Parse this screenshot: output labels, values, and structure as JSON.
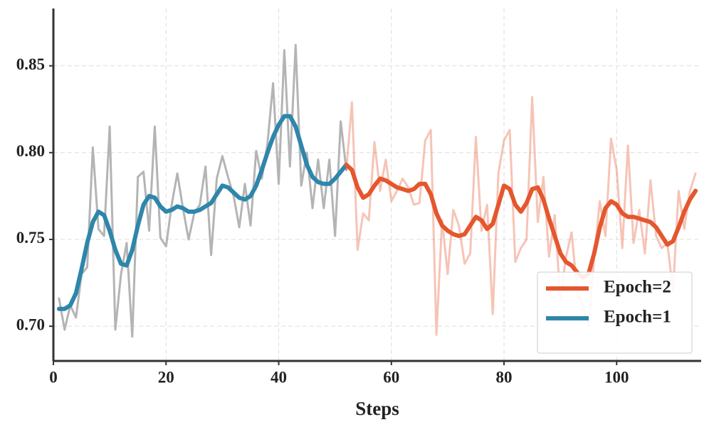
{
  "chart_data": {
    "type": "line",
    "xlabel": "Steps",
    "xlim": [
      0,
      115
    ],
    "ylim": [
      0.68,
      0.883
    ],
    "xticks": [
      0,
      20,
      40,
      60,
      80,
      100
    ],
    "yticks": [
      {
        "value": 0.7,
        "label": "0.70"
      },
      0.75,
      {
        "value": 0.8,
        "label": "0.80"
      },
      0.85
    ],
    "grid": true,
    "legend": "lower right",
    "series": [
      {
        "color": "#b4b4b6",
        "opacity": 1,
        "width": 3,
        "x": [
          1,
          2,
          3,
          4,
          5,
          6,
          7,
          8,
          9,
          10,
          11,
          12,
          13,
          14,
          15,
          16,
          17,
          18,
          19,
          20,
          21,
          22,
          23,
          24,
          25,
          26,
          27,
          28,
          29,
          30,
          31,
          32,
          33,
          34,
          35,
          36,
          37,
          38,
          39,
          40,
          41,
          42,
          43,
          44,
          45,
          46,
          47,
          48,
          49,
          50,
          51,
          52
        ],
        "values": [
          0.716,
          0.698,
          0.712,
          0.705,
          0.73,
          0.734,
          0.803,
          0.756,
          0.752,
          0.815,
          0.698,
          0.73,
          0.748,
          0.694,
          0.786,
          0.789,
          0.755,
          0.815,
          0.751,
          0.746,
          0.77,
          0.788,
          0.768,
          0.75,
          0.765,
          0.77,
          0.792,
          0.741,
          0.785,
          0.798,
          0.786,
          0.775,
          0.757,
          0.782,
          0.758,
          0.801,
          0.785,
          0.805,
          0.84,
          0.782,
          0.859,
          0.792,
          0.862,
          0.781,
          0.8,
          0.768,
          0.796,
          0.768,
          0.796,
          0.752,
          0.818,
          0.79
        ]
      },
      {
        "name": "Epoch=1",
        "color": "#2e86ab",
        "opacity": 1,
        "width": 6,
        "x": [
          1,
          2,
          3,
          4,
          5,
          6,
          7,
          8,
          9,
          10,
          11,
          12,
          13,
          14,
          15,
          16,
          17,
          18,
          19,
          20,
          21,
          22,
          23,
          24,
          25,
          26,
          27,
          28,
          29,
          30,
          31,
          32,
          33,
          34,
          35,
          36,
          37,
          38,
          39,
          40,
          41,
          42,
          43,
          44,
          45,
          46,
          47,
          48,
          49,
          50,
          51,
          52
        ],
        "values": [
          0.71,
          0.71,
          0.712,
          0.719,
          0.733,
          0.748,
          0.76,
          0.766,
          0.764,
          0.755,
          0.744,
          0.736,
          0.735,
          0.744,
          0.758,
          0.77,
          0.775,
          0.774,
          0.769,
          0.766,
          0.767,
          0.769,
          0.768,
          0.766,
          0.766,
          0.767,
          0.769,
          0.771,
          0.776,
          0.781,
          0.78,
          0.777,
          0.774,
          0.773,
          0.775,
          0.781,
          0.79,
          0.8,
          0.809,
          0.816,
          0.821,
          0.821,
          0.815,
          0.804,
          0.793,
          0.786,
          0.783,
          0.782,
          0.782,
          0.785,
          0.789,
          0.793
        ]
      },
      {
        "color": "#e4572e",
        "opacity": 0.35,
        "width": 3,
        "x": [
          52,
          53,
          54,
          55,
          56,
          57,
          58,
          59,
          60,
          61,
          62,
          63,
          64,
          65,
          66,
          67,
          68,
          69,
          70,
          71,
          72,
          73,
          74,
          75,
          76,
          77,
          78,
          79,
          80,
          81,
          82,
          83,
          84,
          85,
          86,
          87,
          88,
          89,
          90,
          91,
          92,
          93,
          94,
          95,
          96,
          97,
          98,
          99,
          100,
          101,
          102,
          103,
          104,
          105,
          106,
          107,
          108,
          109,
          110,
          111,
          112,
          113,
          114
        ],
        "values": [
          0.79,
          0.829,
          0.744,
          0.765,
          0.761,
          0.806,
          0.778,
          0.796,
          0.772,
          0.778,
          0.785,
          0.78,
          0.77,
          0.771,
          0.807,
          0.813,
          0.695,
          0.761,
          0.73,
          0.767,
          0.758,
          0.736,
          0.742,
          0.809,
          0.755,
          0.77,
          0.707,
          0.788,
          0.807,
          0.813,
          0.737,
          0.745,
          0.75,
          0.832,
          0.76,
          0.786,
          0.74,
          0.764,
          0.715,
          0.74,
          0.754,
          0.72,
          0.712,
          0.7,
          0.74,
          0.772,
          0.752,
          0.808,
          0.79,
          0.745,
          0.804,
          0.748,
          0.767,
          0.742,
          0.784,
          0.752,
          0.745,
          0.748,
          0.72,
          0.778,
          0.756,
          0.778,
          0.788
        ]
      },
      {
        "name": "Epoch=2",
        "color": "#e4572e",
        "opacity": 1,
        "width": 6,
        "x": [
          52,
          53,
          54,
          55,
          56,
          57,
          58,
          59,
          60,
          61,
          62,
          63,
          64,
          65,
          66,
          67,
          68,
          69,
          70,
          71,
          72,
          73,
          74,
          75,
          76,
          77,
          78,
          79,
          80,
          81,
          82,
          83,
          84,
          85,
          86,
          87,
          88,
          89,
          90,
          91,
          92,
          93,
          94,
          95,
          96,
          97,
          98,
          99,
          100,
          101,
          102,
          103,
          104,
          105,
          106,
          107,
          108,
          109,
          110,
          111,
          112,
          113,
          114
        ],
        "values": [
          0.793,
          0.79,
          0.78,
          0.774,
          0.776,
          0.781,
          0.785,
          0.784,
          0.782,
          0.78,
          0.779,
          0.778,
          0.779,
          0.782,
          0.782,
          0.776,
          0.765,
          0.758,
          0.755,
          0.753,
          0.752,
          0.753,
          0.758,
          0.763,
          0.761,
          0.756,
          0.759,
          0.77,
          0.781,
          0.779,
          0.77,
          0.766,
          0.771,
          0.779,
          0.78,
          0.773,
          0.762,
          0.752,
          0.742,
          0.737,
          0.735,
          0.731,
          0.728,
          0.73,
          0.742,
          0.757,
          0.768,
          0.772,
          0.77,
          0.765,
          0.763,
          0.763,
          0.762,
          0.761,
          0.76,
          0.757,
          0.752,
          0.747,
          0.749,
          0.757,
          0.766,
          0.773,
          0.778
        ]
      }
    ]
  }
}
